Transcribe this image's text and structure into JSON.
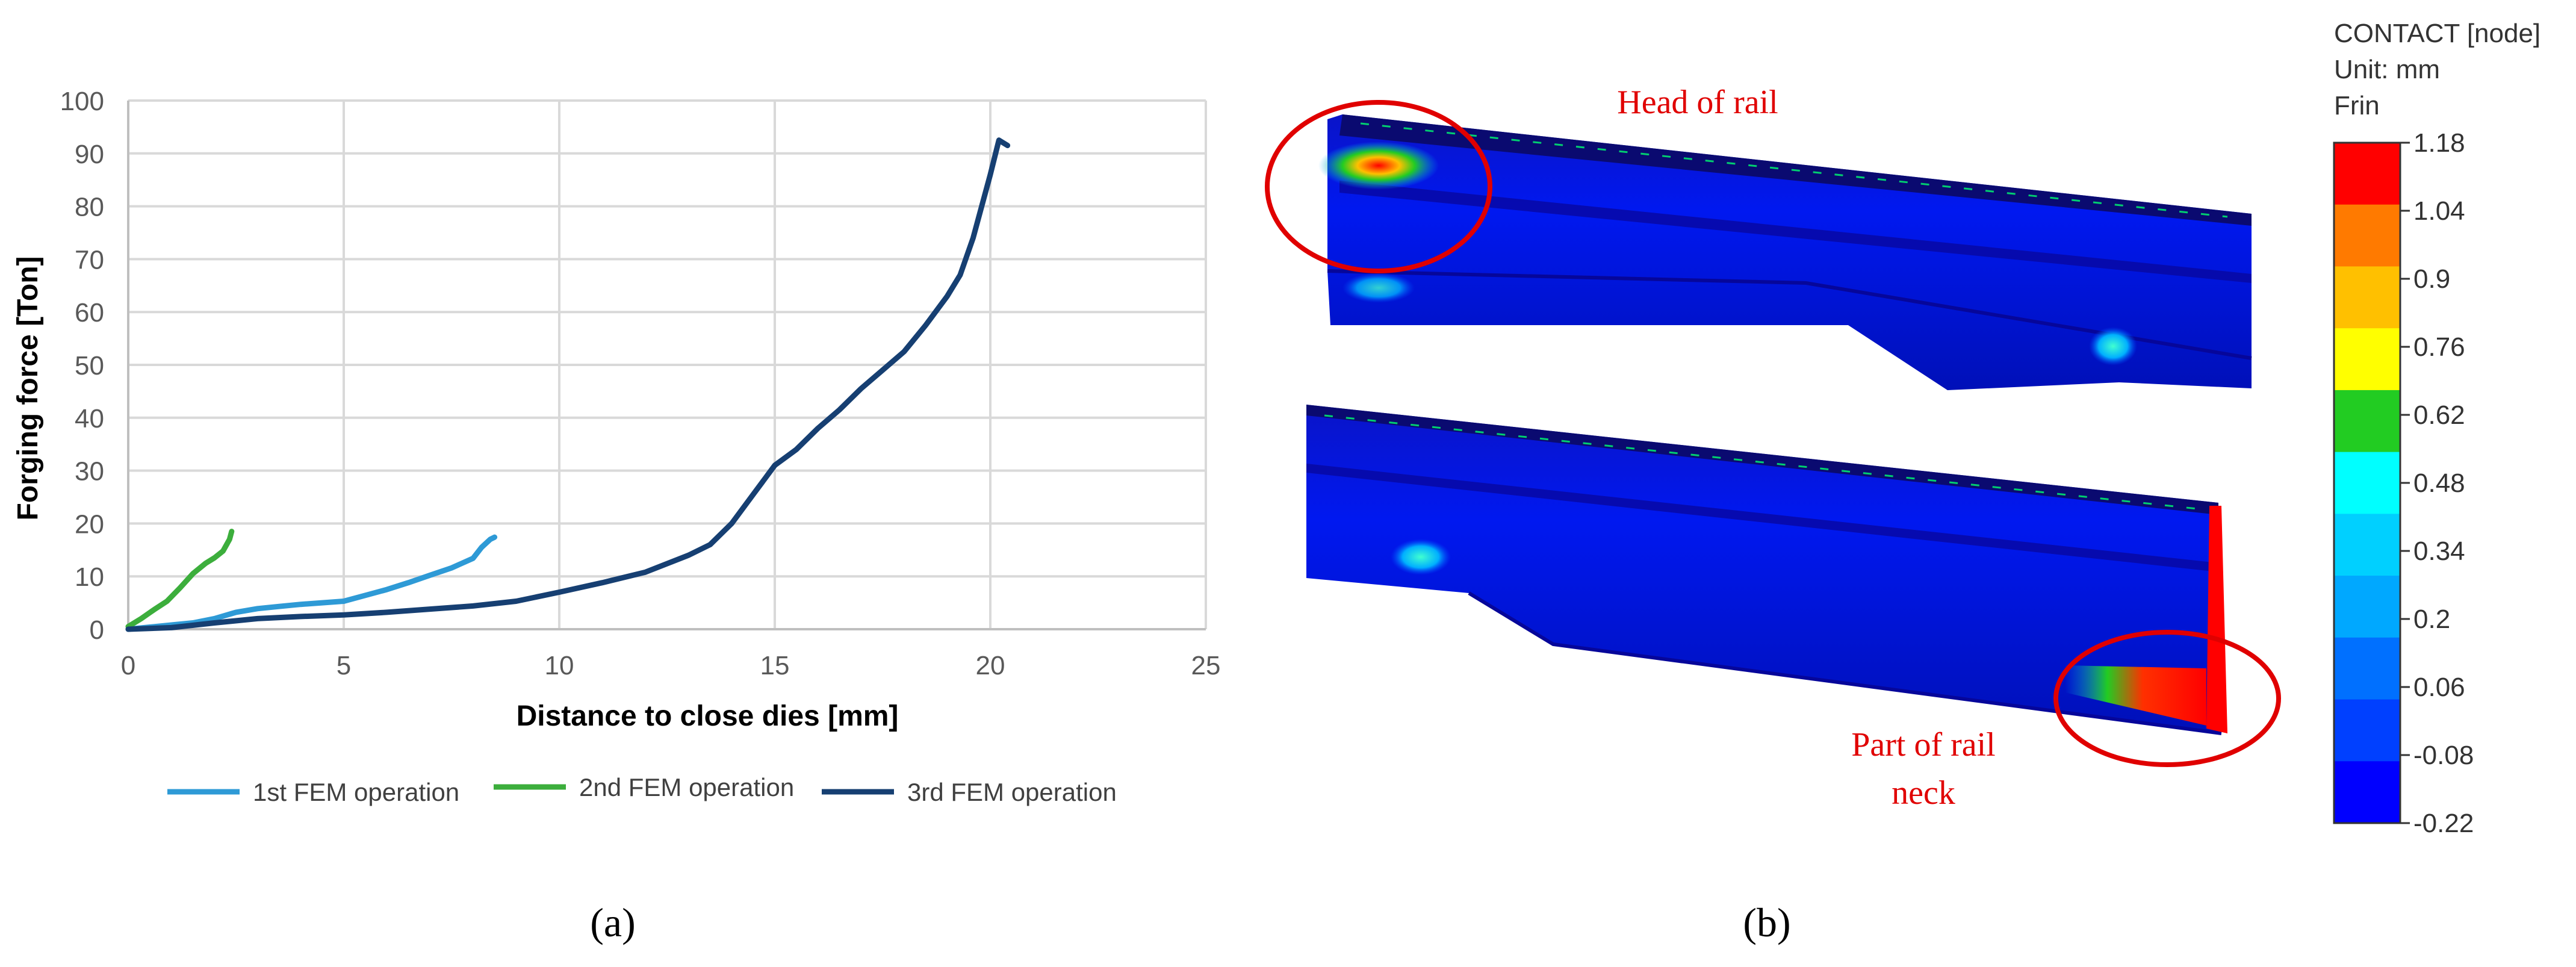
{
  "panel_a_label": "(a)",
  "panel_b_label": "(b)",
  "chart_data": {
    "type": "line",
    "title": "",
    "xlabel": "Distance to close dies [mm]",
    "ylabel": "Forging force [Ton]",
    "xlim": [
      0,
      25
    ],
    "ylim": [
      0,
      100
    ],
    "x_ticks": [
      "0",
      "5",
      "10",
      "15",
      "20",
      "25"
    ],
    "y_ticks": [
      "0",
      "10",
      "20",
      "30",
      "40",
      "50",
      "60",
      "70",
      "80",
      "90",
      "100"
    ],
    "grid": true,
    "legend_position": "bottom",
    "series": [
      {
        "name": "1st FEM operation",
        "color": "#2e9ad6",
        "x": [
          0,
          0.5,
          1.0,
          1.5,
          2.0,
          2.5,
          3.0,
          3.5,
          4.0,
          4.5,
          5.0,
          5.5,
          6.0,
          6.5,
          7.0,
          7.5,
          8.0,
          8.2,
          8.4,
          8.5
        ],
        "y": [
          0,
          0.4,
          0.8,
          1.2,
          2.0,
          3.2,
          3.9,
          4.3,
          4.7,
          5.0,
          5.3,
          6.4,
          7.5,
          8.8,
          10.2,
          11.6,
          13.4,
          15.5,
          17.0,
          17.4
        ]
      },
      {
        "name": "2nd FEM operation",
        "color": "#3cae3c",
        "x": [
          0,
          0.3,
          0.6,
          0.9,
          1.2,
          1.5,
          1.8,
          2.0,
          2.2,
          2.35,
          2.4
        ],
        "y": [
          0.5,
          2.0,
          3.7,
          5.3,
          7.8,
          10.5,
          12.5,
          13.5,
          14.8,
          17.0,
          18.5
        ]
      },
      {
        "name": "3rd FEM operation",
        "color": "#163f72",
        "x": [
          0,
          1,
          2,
          3,
          4,
          5,
          6,
          7,
          8,
          9,
          10,
          11,
          12,
          13,
          13.5,
          14,
          14.5,
          15,
          15.5,
          16,
          16.5,
          17,
          17.5,
          18,
          18.5,
          19,
          19.3,
          19.6,
          19.8,
          20.0,
          20.2,
          20.4
        ],
        "y": [
          0,
          0.3,
          1.2,
          2.0,
          2.4,
          2.7,
          3.2,
          3.8,
          4.4,
          5.3,
          7.0,
          8.8,
          10.8,
          14.0,
          16.0,
          20.0,
          25.5,
          31.0,
          34.0,
          38.0,
          41.5,
          45.5,
          49.0,
          52.5,
          57.5,
          63.0,
          67.0,
          74.0,
          80.0,
          86.0,
          92.5,
          91.5
        ]
      }
    ]
  },
  "contour": {
    "title_line1": "CONTACT [node]",
    "title_line2": "Unit: mm",
    "title_line3": "Frin",
    "annotation_head": "Head of rail",
    "annotation_neck_line1": "Part of rail",
    "annotation_neck_line2": "neck",
    "scale_labels": [
      "1.18",
      "1.04",
      "0.9",
      "0.76",
      "0.62",
      "0.48",
      "0.34",
      "0.2",
      "0.06",
      "-0.08",
      "-0.22"
    ],
    "scale_colors": [
      "#ff0000",
      "#ff7a00",
      "#ffc000",
      "#ffff00",
      "#22cc22",
      "#00ffff",
      "#00d0ff",
      "#00a8ff",
      "#0070ff",
      "#0040ff",
      "#0000ff"
    ],
    "highlight_color": "#e00000"
  }
}
